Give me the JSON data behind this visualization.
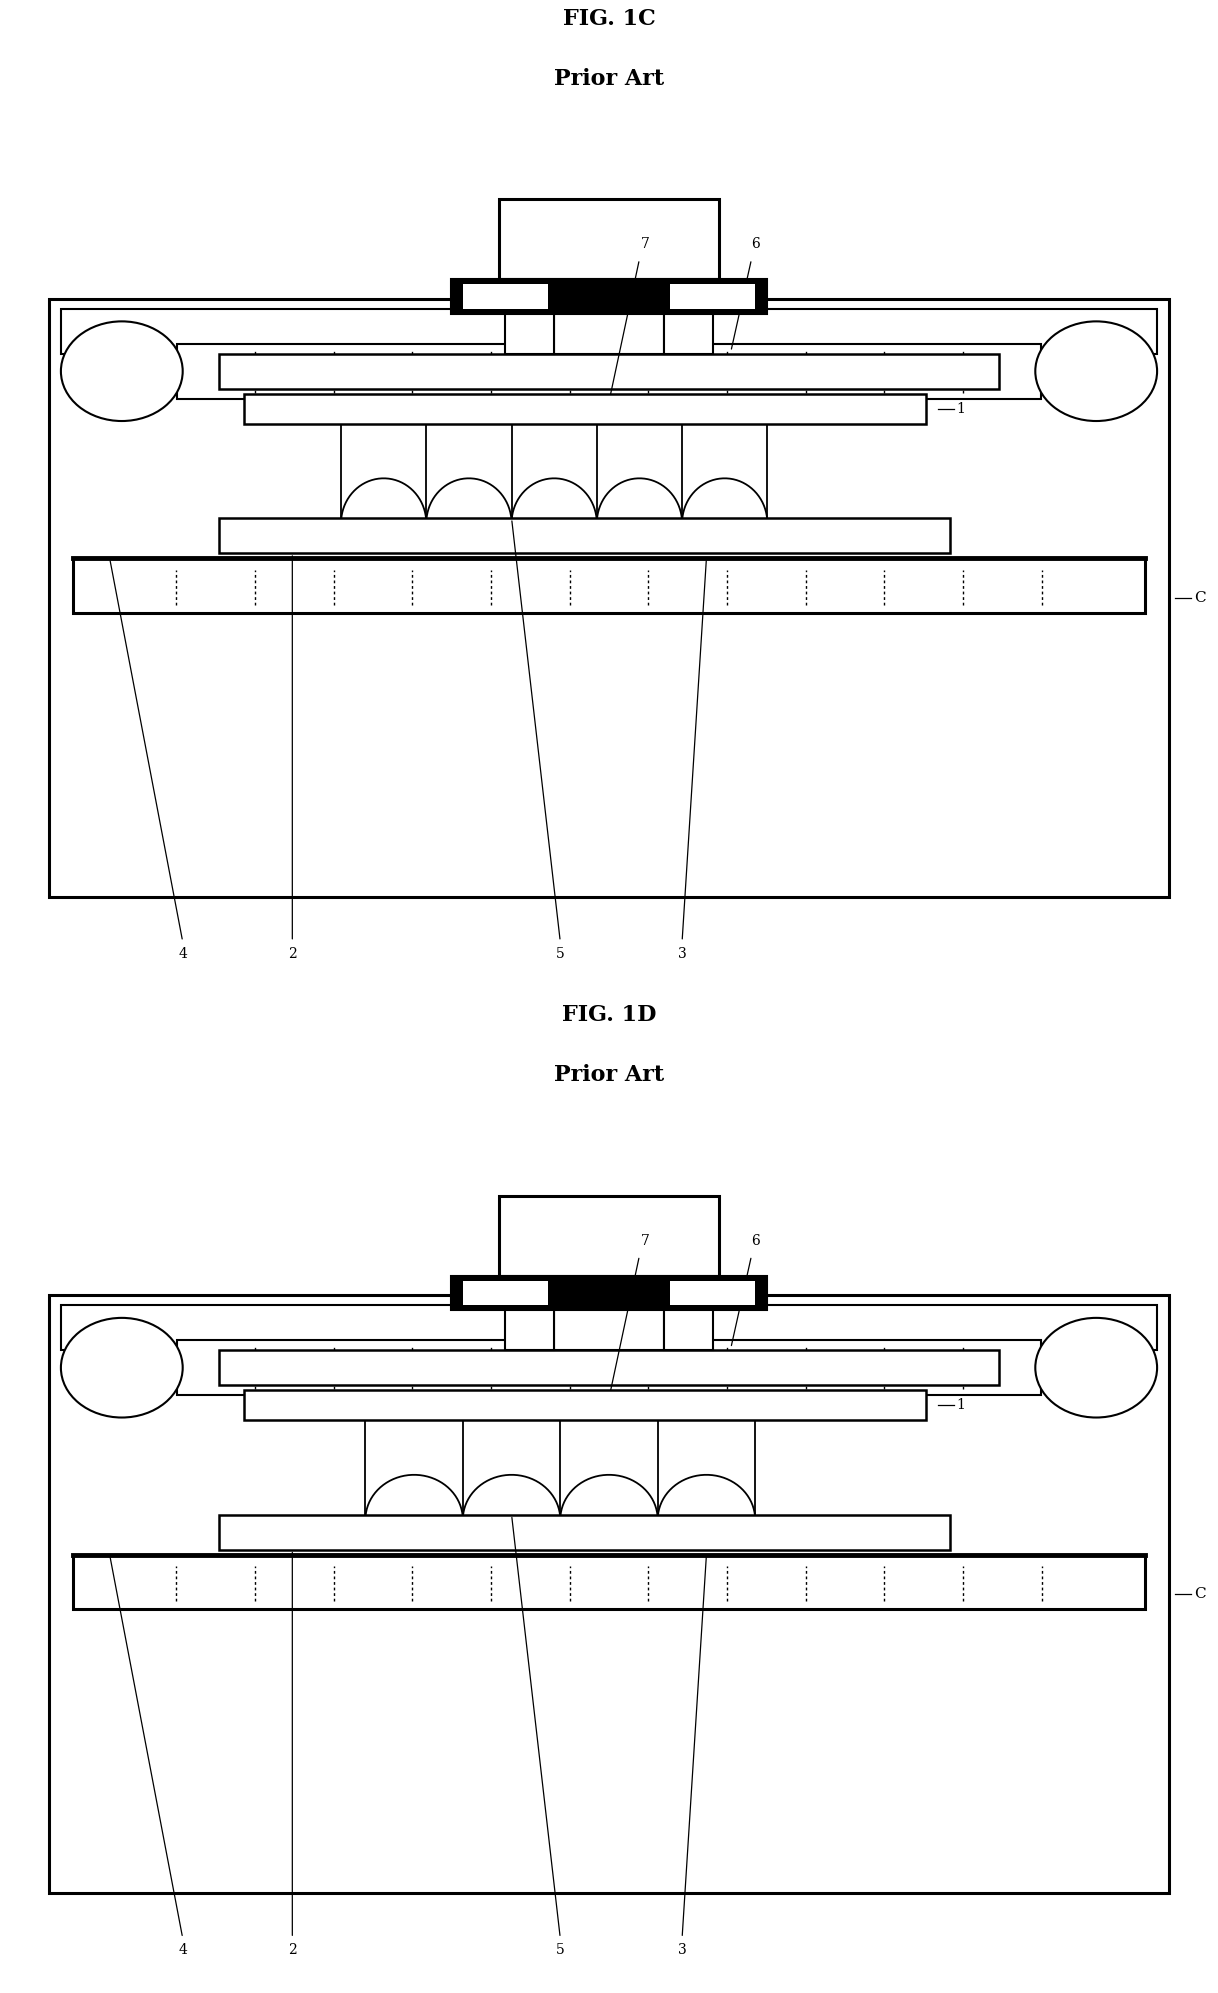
{
  "bg_color": "#ffffff",
  "line_color": "#000000",
  "fig_size": [
    12.18,
    19.93
  ],
  "dpi": 100,
  "diagrams": [
    {
      "title": "FIG. 1C",
      "subtitle": "Prior Art"
    },
    {
      "title": "FIG. 1D",
      "subtitle": "Prior Art"
    }
  ]
}
